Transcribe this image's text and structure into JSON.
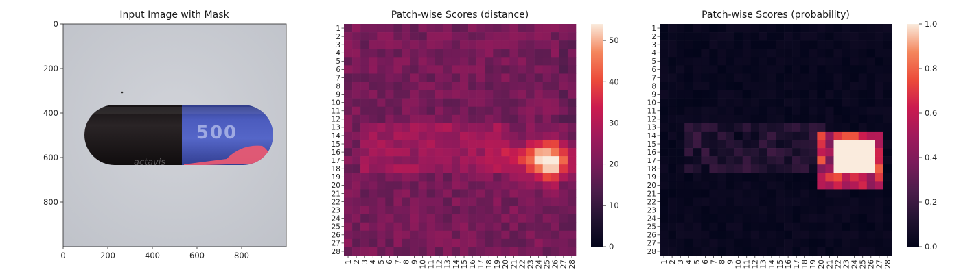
{
  "chart_data": [
    {
      "type": "image",
      "title": "Input Image with Mask",
      "xticks": [
        "0",
        "200",
        "400",
        "600",
        "800"
      ],
      "yticks": [
        "0",
        "200",
        "400",
        "600",
        "800"
      ],
      "xlim": [
        0,
        1000
      ],
      "ylim": [
        0,
        1000
      ],
      "imprint": "500",
      "brand": "actavis",
      "colors": {
        "body": "#1e1a1c",
        "cap": "#4a5ab8",
        "mask": "#e85a72",
        "background": "#c9cbd2"
      }
    },
    {
      "type": "heatmap",
      "title": "Patch-wise Scores (distance)",
      "rows": 28,
      "cols": 28,
      "row_labels": [
        "1",
        "2",
        "3",
        "4",
        "5",
        "6",
        "7",
        "8",
        "9",
        "10",
        "11",
        "12",
        "13",
        "14",
        "15",
        "16",
        "17",
        "18",
        "19",
        "20",
        "21",
        "22",
        "23",
        "24",
        "25",
        "26",
        "27",
        "28"
      ],
      "col_labels": [
        "1",
        "2",
        "3",
        "4",
        "5",
        "6",
        "7",
        "8",
        "9",
        "10",
        "11",
        "12",
        "13",
        "14",
        "15",
        "16",
        "17",
        "18",
        "19",
        "20",
        "21",
        "22",
        "23",
        "24",
        "25",
        "26",
        "27",
        "28"
      ],
      "colorbar_ticks": [
        "0",
        "10",
        "20",
        "30",
        "40",
        "50"
      ],
      "vmin": 0,
      "vmax": 54,
      "colormap": "rocket",
      "base_value": 20,
      "hotspot": {
        "row": 17,
        "col": 25.5,
        "peak": 54
      },
      "note": "values ~15-25 across the field, a ridge ~25-30 on rows 13-18 from col 3 to col 20, and a peak at rows 15-19, cols 20-28"
    },
    {
      "type": "heatmap",
      "title": "Patch-wise Scores (probability)",
      "rows": 28,
      "cols": 28,
      "row_labels": [
        "1",
        "2",
        "3",
        "4",
        "5",
        "6",
        "7",
        "8",
        "9",
        "10",
        "11",
        "12",
        "13",
        "14",
        "15",
        "16",
        "17",
        "18",
        "19",
        "20",
        "21",
        "22",
        "23",
        "24",
        "25",
        "26",
        "27",
        "28"
      ],
      "col_labels": [
        "1",
        "2",
        "3",
        "4",
        "5",
        "6",
        "7",
        "8",
        "9",
        "10",
        "11",
        "12",
        "13",
        "14",
        "15",
        "16",
        "17",
        "18",
        "19",
        "20",
        "21",
        "22",
        "23",
        "24",
        "25",
        "26",
        "27",
        "28"
      ],
      "colorbar_ticks": [
        "0.0",
        "0.2",
        "0.4",
        "0.6",
        "0.8",
        "1.0"
      ],
      "vmin": 0,
      "vmax": 1,
      "colormap": "rocket",
      "hotspot": {
        "rows": [
          15,
          18
        ],
        "cols": [
          22,
          26
        ],
        "value": 1.0
      },
      "note": "near 0 everywhere except a saturated block at rows 15-18, cols 22-26"
    }
  ]
}
